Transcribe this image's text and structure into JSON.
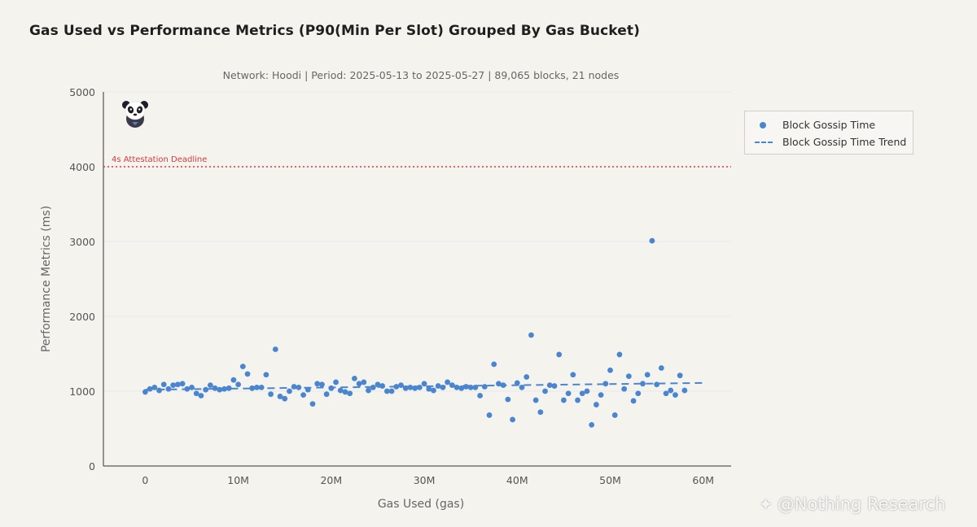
{
  "title": "Gas Used vs Performance Metrics (P90(Min Per Slot) Grouped By Gas Bucket)",
  "subtitle": "Network: Hoodi | Period: 2025-05-13 to 2025-05-27 | 89,065 blocks, 21 nodes",
  "watermark": "@Nothing Research",
  "colors": {
    "series": "#4a86cf",
    "reference": "#d63a3a",
    "background": "#f5f3ee"
  },
  "logo_icon": "panda-icon",
  "legend": {
    "placement": "right",
    "items": [
      {
        "label": "Block Gossip Time",
        "marker": "dot"
      },
      {
        "label": "Block Gossip Time Trend",
        "marker": "dash"
      }
    ]
  },
  "chart_data": {
    "type": "scatter",
    "xlabel": "Gas Used (gas)",
    "ylabel": "Performance Metrics (ms)",
    "xlim": [
      -4.5,
      63
    ],
    "ylim": [
      0,
      5000
    ],
    "xticks": [
      0,
      10,
      20,
      30,
      40,
      50,
      60
    ],
    "xtick_labels": [
      "0",
      "10M",
      "20M",
      "30M",
      "40M",
      "50M",
      "60M"
    ],
    "yticks": [
      0,
      1000,
      2000,
      3000,
      4000,
      5000
    ],
    "ytick_labels": [
      "0",
      "1000",
      "2000",
      "3000",
      "4000",
      "5000"
    ],
    "x_unit_note": "x values in millions of gas",
    "grid": "horizontal",
    "reference_lines": [
      {
        "label": "4s Attestation Deadline",
        "y": 4000,
        "style": "dotted"
      }
    ],
    "series": [
      {
        "name": "Block Gossip Time",
        "style": "dot",
        "points": [
          [
            0,
            990
          ],
          [
            0.5,
            1030
          ],
          [
            1,
            1050
          ],
          [
            1.5,
            1010
          ],
          [
            2,
            1090
          ],
          [
            2.5,
            1030
          ],
          [
            3,
            1080
          ],
          [
            3.5,
            1090
          ],
          [
            4,
            1100
          ],
          [
            4.5,
            1030
          ],
          [
            5,
            1050
          ],
          [
            5.5,
            970
          ],
          [
            6,
            940
          ],
          [
            6.5,
            1020
          ],
          [
            7,
            1080
          ],
          [
            7.5,
            1040
          ],
          [
            8,
            1020
          ],
          [
            8.5,
            1030
          ],
          [
            9,
            1040
          ],
          [
            9.5,
            1150
          ],
          [
            10,
            1090
          ],
          [
            10.5,
            1330
          ],
          [
            11,
            1230
          ],
          [
            11.5,
            1040
          ],
          [
            12,
            1050
          ],
          [
            12.5,
            1050
          ],
          [
            13,
            1220
          ],
          [
            13.5,
            960
          ],
          [
            14,
            1560
          ],
          [
            14.5,
            930
          ],
          [
            15,
            900
          ],
          [
            15.5,
            1000
          ],
          [
            16,
            1060
          ],
          [
            16.5,
            1050
          ],
          [
            17,
            950
          ],
          [
            17.5,
            1020
          ],
          [
            18,
            830
          ],
          [
            18.5,
            1100
          ],
          [
            19,
            1090
          ],
          [
            19.5,
            960
          ],
          [
            20,
            1040
          ],
          [
            20.5,
            1120
          ],
          [
            21,
            1010
          ],
          [
            21.5,
            990
          ],
          [
            22,
            970
          ],
          [
            22.5,
            1170
          ],
          [
            23,
            1100
          ],
          [
            23.5,
            1120
          ],
          [
            24,
            1010
          ],
          [
            24.5,
            1050
          ],
          [
            25,
            1090
          ],
          [
            25.5,
            1070
          ],
          [
            26,
            1000
          ],
          [
            26.5,
            1000
          ],
          [
            27,
            1060
          ],
          [
            27.5,
            1080
          ],
          [
            28,
            1040
          ],
          [
            28.5,
            1050
          ],
          [
            29,
            1040
          ],
          [
            29.5,
            1050
          ],
          [
            30,
            1100
          ],
          [
            30.5,
            1030
          ],
          [
            31,
            1010
          ],
          [
            31.5,
            1070
          ],
          [
            32,
            1050
          ],
          [
            32.5,
            1120
          ],
          [
            33,
            1080
          ],
          [
            33.5,
            1050
          ],
          [
            34,
            1040
          ],
          [
            34.5,
            1060
          ],
          [
            35,
            1050
          ],
          [
            35.5,
            1050
          ],
          [
            36,
            940
          ],
          [
            36.5,
            1060
          ],
          [
            37,
            680
          ],
          [
            37.5,
            1360
          ],
          [
            38,
            1100
          ],
          [
            38.5,
            1080
          ],
          [
            39,
            890
          ],
          [
            39.5,
            620
          ],
          [
            40,
            1110
          ],
          [
            40.5,
            1050
          ],
          [
            41,
            1190
          ],
          [
            41.5,
            1750
          ],
          [
            42,
            880
          ],
          [
            42.5,
            720
          ],
          [
            43,
            1000
          ],
          [
            43.5,
            1080
          ],
          [
            44,
            1070
          ],
          [
            44.5,
            1490
          ],
          [
            45,
            880
          ],
          [
            45.5,
            970
          ],
          [
            46,
            1220
          ],
          [
            46.5,
            880
          ],
          [
            47,
            970
          ],
          [
            47.5,
            1000
          ],
          [
            48,
            550
          ],
          [
            48.5,
            820
          ],
          [
            49,
            950
          ],
          [
            49.5,
            1100
          ],
          [
            50,
            1280
          ],
          [
            50.5,
            680
          ],
          [
            51,
            1490
          ],
          [
            51.5,
            1030
          ],
          [
            52,
            1200
          ],
          [
            52.5,
            870
          ],
          [
            53,
            970
          ],
          [
            53.5,
            1100
          ],
          [
            54,
            1220
          ],
          [
            54.5,
            3010
          ],
          [
            55,
            1090
          ],
          [
            55.5,
            1310
          ],
          [
            56,
            970
          ],
          [
            56.5,
            1010
          ],
          [
            57,
            950
          ],
          [
            57.5,
            1210
          ],
          [
            58,
            1010
          ]
        ]
      },
      {
        "name": "Block Gossip Time Trend",
        "style": "dashed",
        "points": [
          [
            0,
            1020
          ],
          [
            60,
            1110
          ]
        ]
      }
    ]
  }
}
